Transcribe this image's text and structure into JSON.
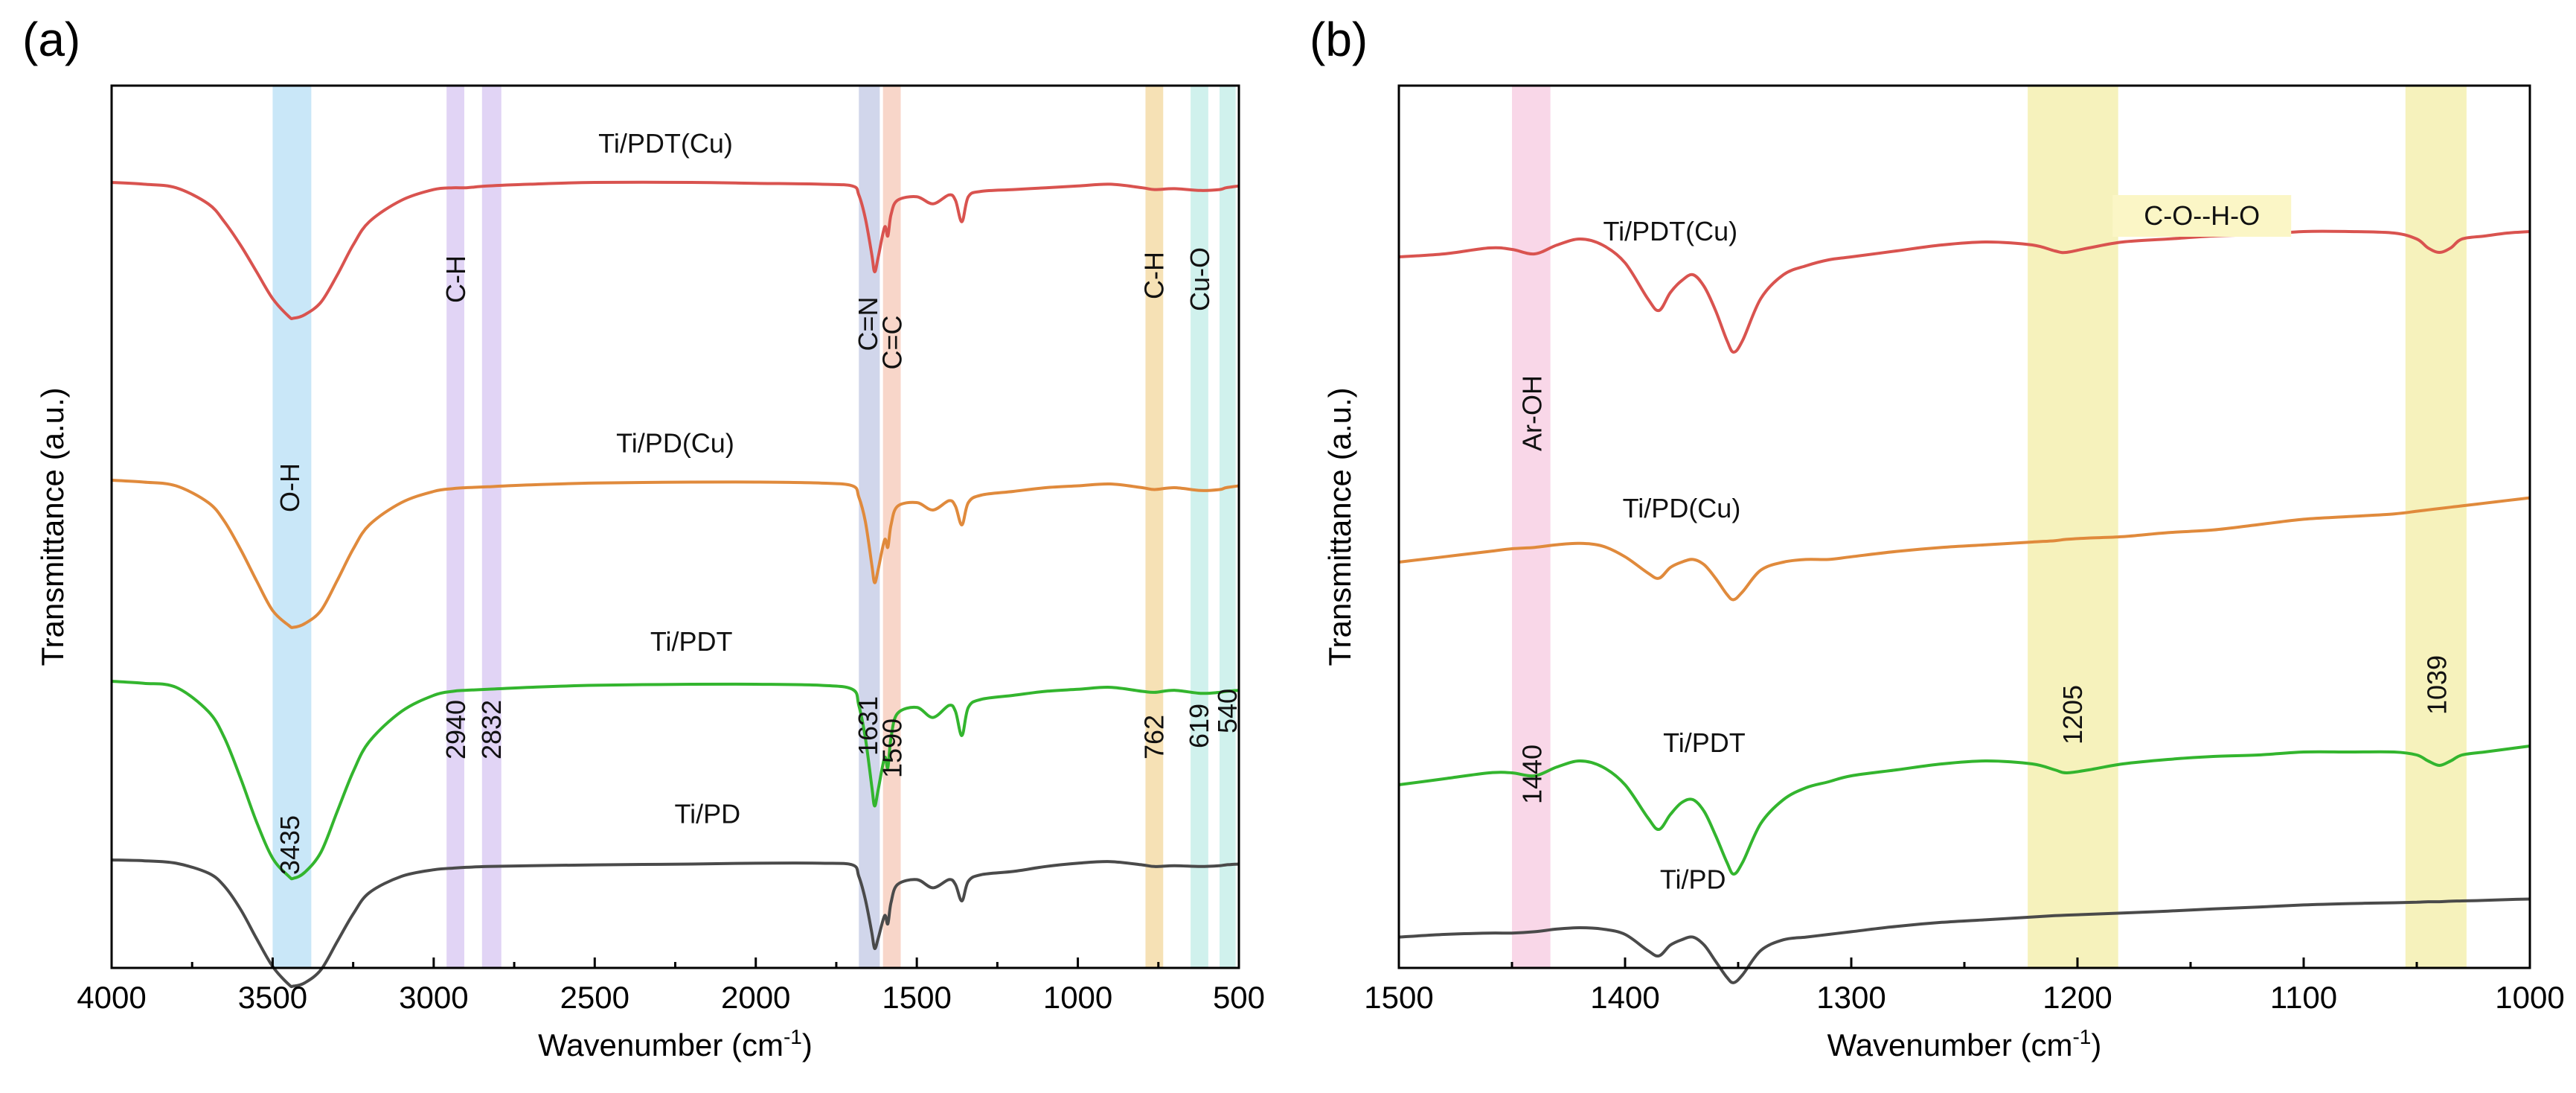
{
  "chart_data": [
    {
      "type": "line",
      "panel_label": "(a)",
      "xlabel": "Wavenumber (cm",
      "xlabel_sup": "-1",
      "xlabel_end": ")",
      "ylabel": "Transmittance (a.u.)",
      "xlim": [
        4000,
        500
      ],
      "xticks": [
        "4000",
        "3500",
        "3000",
        "2500",
        "2000",
        "1500",
        "1000",
        "500"
      ],
      "grid": false,
      "series": [
        {
          "name": "Ti/PDT(Cu)",
          "color": "#d9534f",
          "x": [
            4000,
            3900,
            3800,
            3700,
            3650,
            3600,
            3550,
            3500,
            3450,
            3435,
            3400,
            3350,
            3300,
            3250,
            3200,
            3100,
            3000,
            2940,
            2900,
            2832,
            2700,
            2500,
            2200,
            2000,
            1800,
            1700,
            1680,
            1660,
            1640,
            1631,
            1620,
            1600,
            1590,
            1580,
            1560,
            1500,
            1450,
            1400,
            1380,
            1360,
            1340,
            1300,
            1200,
            1100,
            1000,
            900,
            800,
            762,
            700,
            619,
            560,
            540,
            500
          ],
          "y": [
            100,
            99,
            97,
            88,
            78,
            65,
            50,
            35,
            25,
            24,
            26,
            33,
            48,
            65,
            78,
            90,
            96,
            97,
            97,
            98,
            99,
            100,
            100,
            99.5,
            99,
            98,
            93,
            80,
            60,
            50,
            58,
            75,
            70,
            82,
            90,
            92,
            88,
            93,
            90,
            78,
            92,
            95,
            96,
            97,
            98,
            99,
            97,
            96,
            96.5,
            95.5,
            96,
            97,
            98
          ]
        },
        {
          "name": "Ti/PD(Cu)",
          "color": "#e08a3c",
          "x": [
            4000,
            3900,
            3800,
            3700,
            3650,
            3600,
            3550,
            3500,
            3450,
            3435,
            3400,
            3350,
            3300,
            3250,
            3200,
            3100,
            3000,
            2940,
            2900,
            2832,
            2700,
            2500,
            2200,
            2000,
            1800,
            1700,
            1680,
            1660,
            1640,
            1631,
            1620,
            1600,
            1590,
            1580,
            1560,
            1500,
            1450,
            1400,
            1380,
            1360,
            1340,
            1300,
            1200,
            1100,
            1000,
            900,
            800,
            762,
            700,
            619,
            560,
            540,
            500
          ],
          "y": [
            100,
            99,
            97,
            88,
            78,
            63,
            46,
            30,
            22,
            21,
            23,
            30,
            46,
            63,
            76,
            88,
            94,
            95.5,
            96,
            96.5,
            97.5,
            98.5,
            99,
            99,
            98.5,
            97,
            91,
            78,
            55,
            45,
            52,
            68,
            64,
            76,
            86,
            88,
            84,
            89,
            86,
            76,
            88,
            92,
            94,
            96,
            97,
            98,
            96,
            95,
            96,
            94.5,
            95,
            96,
            97
          ]
        },
        {
          "name": "Ti/PDT",
          "color": "#33b52e",
          "x": [
            4000,
            3900,
            3800,
            3700,
            3650,
            3600,
            3550,
            3500,
            3450,
            3435,
            3400,
            3350,
            3300,
            3250,
            3200,
            3100,
            3000,
            2940,
            2900,
            2832,
            2700,
            2500,
            2200,
            2000,
            1800,
            1700,
            1680,
            1660,
            1640,
            1631,
            1620,
            1600,
            1590,
            1580,
            1560,
            1500,
            1450,
            1400,
            1380,
            1360,
            1340,
            1300,
            1200,
            1100,
            1000,
            900,
            800,
            762,
            700,
            619,
            560,
            540,
            500
          ],
          "y": [
            100,
            99,
            97,
            85,
            72,
            52,
            30,
            12,
            3,
            2,
            5,
            15,
            35,
            55,
            70,
            85,
            93,
            95,
            95.5,
            96,
            97,
            98,
            98.5,
            98.5,
            98,
            96,
            88,
            72,
            48,
            38,
            46,
            62,
            57,
            72,
            84,
            87,
            82,
            88,
            85,
            73,
            87,
            91,
            93,
            95,
            96,
            97,
            95,
            94.5,
            95.5,
            94,
            94.5,
            95,
            95.5
          ]
        },
        {
          "name": "Ti/PD",
          "color": "#4a4a4a",
          "x": [
            4000,
            3900,
            3800,
            3700,
            3650,
            3600,
            3550,
            3500,
            3450,
            3435,
            3400,
            3350,
            3300,
            3250,
            3200,
            3100,
            3000,
            2940,
            2900,
            2832,
            2700,
            2500,
            2200,
            2000,
            1800,
            1700,
            1680,
            1660,
            1640,
            1631,
            1620,
            1600,
            1590,
            1580,
            1560,
            1500,
            1450,
            1400,
            1380,
            1360,
            1340,
            1300,
            1200,
            1100,
            1000,
            900,
            800,
            762,
            700,
            619,
            560,
            540,
            500
          ],
          "y": [
            100,
            99.5,
            98,
            92,
            84,
            70,
            52,
            35,
            24,
            23,
            25,
            33,
            50,
            67,
            80,
            90,
            94,
            95,
            95.5,
            96,
            96.5,
            97,
            97.5,
            98,
            98,
            97,
            90,
            76,
            56,
            46,
            52,
            66,
            61,
            74,
            85,
            88,
            83,
            88,
            85,
            75,
            87,
            91,
            93,
            96,
            98,
            99,
            97,
            96,
            96.5,
            96,
            96.5,
            97,
            97.5
          ]
        }
      ],
      "series_labels": [
        {
          "text": "Ti/PDT(Cu)",
          "x": 2280,
          "series": 0
        },
        {
          "text": "Ti/PD(Cu)",
          "x": 2250,
          "series": 1
        },
        {
          "text": "Ti/PDT",
          "x": 2200,
          "series": 2
        },
        {
          "text": "Ti/PD",
          "x": 2150,
          "series": 3
        }
      ],
      "bands": [
        {
          "from": 3500,
          "to": 3380,
          "color": "#bfe3f7"
        },
        {
          "from": 2960,
          "to": 2905,
          "color": "#dcccf3"
        },
        {
          "from": 2850,
          "to": 2790,
          "color": "#dcccf3"
        },
        {
          "from": 1680,
          "to": 1615,
          "color": "#c9cfe8"
        },
        {
          "from": 1605,
          "to": 1550,
          "color": "#f7cfc0"
        },
        {
          "from": 790,
          "to": 735,
          "color": "#f5dca8"
        },
        {
          "from": 650,
          "to": 595,
          "color": "#c8eeea"
        },
        {
          "from": 560,
          "to": 510,
          "color": "#c8eeea"
        }
      ],
      "band_labels": [
        {
          "text": "O-H",
          "x": 3445
        },
        {
          "text": "C-H",
          "x": 2930
        },
        {
          "text": "C=N",
          "x": 1650
        },
        {
          "text": "C=C",
          "x": 1575
        },
        {
          "text": "C-H",
          "x": 762
        },
        {
          "text": "Cu-O",
          "x": 620
        }
      ],
      "peak_labels": [
        {
          "text": "3435",
          "x": 3445
        },
        {
          "text": "2940",
          "x": 2930
        },
        {
          "text": "2832",
          "x": 2820
        },
        {
          "text": "1631",
          "x": 1650
        },
        {
          "text": "1590",
          "x": 1575
        },
        {
          "text": "762",
          "x": 762
        },
        {
          "text": "619",
          "x": 622
        },
        {
          "text": "540",
          "x": 535
        }
      ]
    },
    {
      "type": "line",
      "panel_label": "(b)",
      "xlabel": "Wavenumber (cm",
      "xlabel_sup": "-1",
      "xlabel_end": ")",
      "ylabel": "Transmittance (a.u.)",
      "xlim": [
        1500,
        1000
      ],
      "xticks": [
        "1500",
        "1400",
        "1300",
        "1200",
        "1100",
        "1000"
      ],
      "grid": false,
      "series": [
        {
          "name": "Ti/PDT(Cu)",
          "color": "#d9534f",
          "x": [
            1500,
            1480,
            1460,
            1450,
            1440,
            1430,
            1420,
            1410,
            1400,
            1390,
            1385,
            1380,
            1375,
            1370,
            1365,
            1360,
            1355,
            1352,
            1348,
            1340,
            1330,
            1320,
            1310,
            1300,
            1280,
            1260,
            1240,
            1220,
            1210,
            1205,
            1195,
            1180,
            1160,
            1140,
            1120,
            1100,
            1080,
            1060,
            1050,
            1045,
            1040,
            1035,
            1030,
            1020,
            1010,
            1000
          ],
          "y": [
            90,
            91,
            93,
            92.5,
            91,
            94,
            96,
            94,
            88,
            76,
            72,
            78,
            82,
            84,
            80,
            72,
            62,
            58,
            62,
            76,
            84,
            87,
            89,
            90,
            92,
            94,
            95,
            94,
            92,
            91.5,
            93,
            95,
            96,
            97,
            97.5,
            98.5,
            98.5,
            98,
            96,
            93,
            91.5,
            93,
            96,
            97,
            98,
            98.5
          ]
        },
        {
          "name": "Ti/PD(Cu)",
          "color": "#e08a3c",
          "x": [
            1500,
            1480,
            1460,
            1450,
            1440,
            1430,
            1420,
            1410,
            1400,
            1390,
            1385,
            1380,
            1375,
            1370,
            1365,
            1360,
            1355,
            1352,
            1348,
            1340,
            1330,
            1320,
            1310,
            1300,
            1280,
            1260,
            1240,
            1220,
            1210,
            1205,
            1195,
            1180,
            1160,
            1140,
            1120,
            1100,
            1080,
            1060,
            1050,
            1045,
            1040,
            1035,
            1030,
            1020,
            1010,
            1000
          ],
          "y": [
            90,
            92,
            94,
            95,
            95.5,
            96.5,
            97,
            96,
            92,
            86,
            84,
            88,
            90,
            91,
            89,
            84,
            78,
            76,
            79,
            87,
            90,
            91,
            91,
            92,
            94,
            95.5,
            96.5,
            97.5,
            98,
            98.5,
            99,
            99.5,
            101,
            102,
            104,
            106,
            107,
            108,
            109,
            109.5,
            110,
            110.5,
            111,
            112,
            113,
            114
          ]
        },
        {
          "name": "Ti/PDT",
          "color": "#33b52e",
          "x": [
            1500,
            1480,
            1460,
            1450,
            1440,
            1430,
            1420,
            1410,
            1400,
            1390,
            1385,
            1380,
            1375,
            1370,
            1365,
            1360,
            1355,
            1352,
            1348,
            1340,
            1330,
            1320,
            1310,
            1300,
            1280,
            1260,
            1240,
            1220,
            1210,
            1205,
            1195,
            1180,
            1160,
            1140,
            1120,
            1100,
            1080,
            1060,
            1050,
            1045,
            1040,
            1035,
            1030,
            1020,
            1010,
            1000
          ],
          "y": [
            89,
            91,
            93,
            93,
            92,
            95,
            97,
            95,
            89,
            78,
            74,
            79,
            83,
            84,
            80,
            72,
            63,
            59,
            63,
            76,
            84,
            88,
            90,
            92,
            94,
            96,
            97,
            96,
            94,
            93,
            94,
            96,
            97.5,
            98.5,
            99,
            100,
            100,
            100,
            99,
            97,
            95.5,
            97,
            99,
            100,
            101,
            102
          ]
        },
        {
          "name": "Ti/PD",
          "color": "#4a4a4a",
          "x": [
            1500,
            1480,
            1460,
            1450,
            1440,
            1430,
            1420,
            1410,
            1400,
            1390,
            1385,
            1380,
            1375,
            1370,
            1365,
            1360,
            1355,
            1352,
            1348,
            1340,
            1330,
            1320,
            1310,
            1300,
            1280,
            1260,
            1240,
            1220,
            1210,
            1205,
            1195,
            1180,
            1160,
            1140,
            1120,
            1100,
            1080,
            1060,
            1050,
            1045,
            1040,
            1035,
            1030,
            1020,
            1010,
            1000
          ],
          "y": [
            89,
            90,
            90.5,
            90.5,
            91,
            92,
            92.5,
            92,
            90,
            84,
            82,
            86,
            88,
            89,
            86,
            80,
            74,
            72,
            75,
            84,
            88,
            89,
            90,
            91,
            93,
            94.5,
            95.5,
            96.5,
            97,
            97.2,
            97.5,
            98,
            98.7,
            99.5,
            100.2,
            101,
            101.5,
            101.8,
            102,
            102.2,
            102.2,
            102.4,
            102.5,
            102.7,
            103,
            103.2
          ]
        }
      ],
      "series_labels": [
        {
          "text": "Ti/PDT(Cu)",
          "x": 1380,
          "series": 0
        },
        {
          "text": "Ti/PD(Cu)",
          "x": 1375,
          "series": 1
        },
        {
          "text": "Ti/PDT",
          "x": 1365,
          "series": 2
        },
        {
          "text": "Ti/PD",
          "x": 1370,
          "series": 3
        }
      ],
      "bands": [
        {
          "from": 1450,
          "to": 1433,
          "color": "#f8d0e4"
        },
        {
          "from": 1222,
          "to": 1182,
          "color": "#f4f0b0"
        },
        {
          "from": 1055,
          "to": 1028,
          "color": "#f4f0b0"
        }
      ],
      "band_labels": [
        {
          "text": "Ar-OH",
          "x": 1441
        }
      ],
      "peak_labels": [
        {
          "text": "1440",
          "x": 1441
        },
        {
          "text": "1205",
          "x": 1202
        },
        {
          "text": "1039",
          "x": 1041
        }
      ],
      "annotation": {
        "text": "C-O--H-O",
        "x": 1145
      }
    }
  ]
}
